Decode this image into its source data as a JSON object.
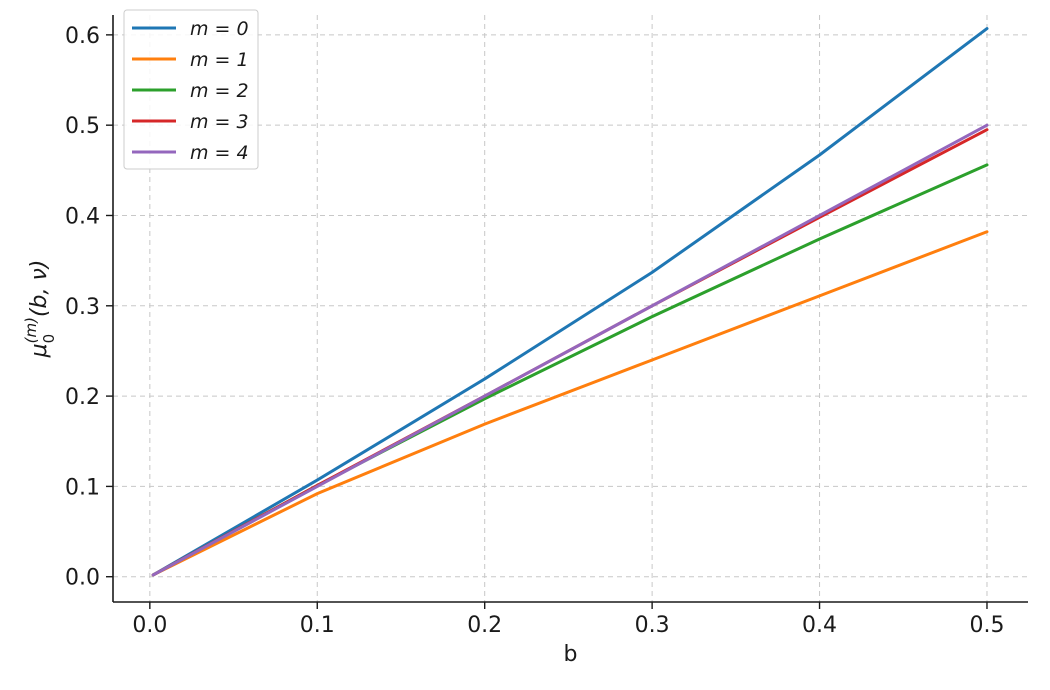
{
  "chart_data": {
    "type": "line",
    "title": "",
    "xlabel": "b",
    "ylabel_parts": {
      "base": "μ",
      "sub": "0",
      "sup": "(m)",
      "args": "(b, ν)"
    },
    "xlim": [
      -0.022,
      0.5245
    ],
    "ylim": [
      -0.028,
      0.622
    ],
    "xticks": [
      0.0,
      0.1,
      0.2,
      0.3,
      0.4,
      0.5
    ],
    "xtick_labels": [
      "0.0",
      "0.1",
      "0.2",
      "0.3",
      "0.4",
      "0.5"
    ],
    "yticks": [
      0.0,
      0.1,
      0.2,
      0.3,
      0.4,
      0.5,
      0.6
    ],
    "ytick_labels": [
      "0.0",
      "0.1",
      "0.2",
      "0.3",
      "0.4",
      "0.5",
      "0.6"
    ],
    "grid": true,
    "legend_position": "top-left",
    "series": [
      {
        "name": "m = 0",
        "color": "#1f77b4",
        "x": [
          0.002,
          0.1,
          0.2,
          0.3,
          0.4,
          0.5
        ],
        "y": [
          0.002,
          0.107,
          0.219,
          0.337,
          0.467,
          0.607
        ]
      },
      {
        "name": "m = 1",
        "color": "#ff7f0e",
        "x": [
          0.002,
          0.1,
          0.2,
          0.3,
          0.4,
          0.5
        ],
        "y": [
          0.002,
          0.092,
          0.169,
          0.24,
          0.311,
          0.382
        ]
      },
      {
        "name": "m = 2",
        "color": "#2ca02c",
        "x": [
          0.002,
          0.1,
          0.2,
          0.3,
          0.4,
          0.5
        ],
        "y": [
          0.002,
          0.101,
          0.197,
          0.288,
          0.374,
          0.456
        ]
      },
      {
        "name": "m = 3",
        "color": "#d62728",
        "x": [
          0.002,
          0.1,
          0.2,
          0.3,
          0.4,
          0.5
        ],
        "y": [
          0.002,
          0.101,
          0.2,
          0.3,
          0.398,
          0.495
        ]
      },
      {
        "name": "m = 4",
        "color": "#9467bd",
        "x": [
          0.002,
          0.1,
          0.2,
          0.3,
          0.4,
          0.5
        ],
        "y": [
          0.002,
          0.1,
          0.2,
          0.3,
          0.4,
          0.5
        ]
      }
    ]
  }
}
